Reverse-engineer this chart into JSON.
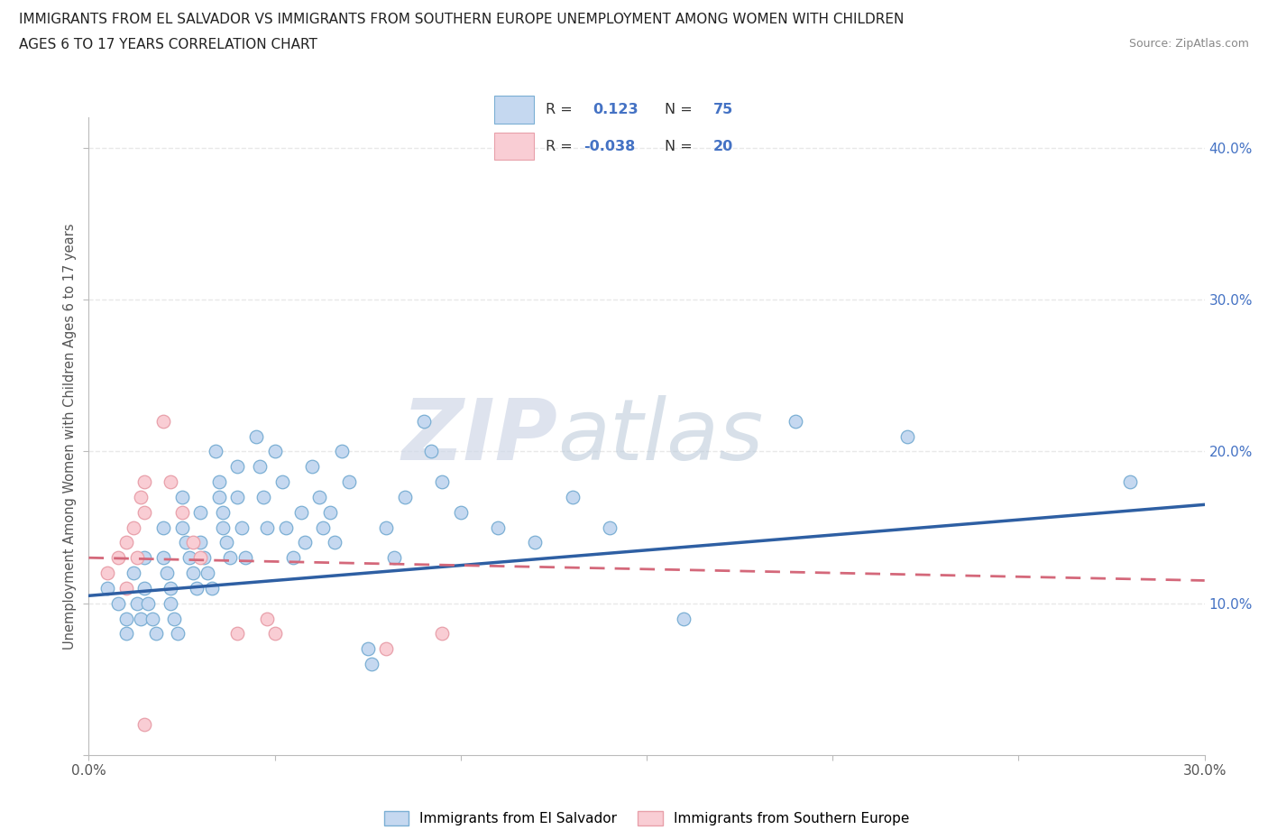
{
  "title_line1": "IMMIGRANTS FROM EL SALVADOR VS IMMIGRANTS FROM SOUTHERN EUROPE UNEMPLOYMENT AMONG WOMEN WITH CHILDREN",
  "title_line2": "AGES 6 TO 17 YEARS CORRELATION CHART",
  "source": "Source: ZipAtlas.com",
  "ylabel": "Unemployment Among Women with Children Ages 6 to 17 years",
  "xlim": [
    0.0,
    0.3
  ],
  "ylim": [
    0.0,
    0.42
  ],
  "xticks": [
    0.0,
    0.05,
    0.1,
    0.15,
    0.2,
    0.25,
    0.3
  ],
  "yticks": [
    0.0,
    0.1,
    0.2,
    0.3,
    0.4
  ],
  "xtick_labels": [
    "0.0%",
    "",
    "",
    "",
    "",
    "",
    "30.0%"
  ],
  "ytick_labels_right": [
    "",
    "10.0%",
    "20.0%",
    "30.0%",
    "40.0%"
  ],
  "xtick_labels_bottom": [
    "0.0%",
    "",
    "",
    "",
    "",
    "",
    "30.0%"
  ],
  "R_blue": 0.123,
  "N_blue": 75,
  "R_pink": -0.038,
  "N_pink": 20,
  "blue_scatter": [
    [
      0.005,
      0.11
    ],
    [
      0.008,
      0.1
    ],
    [
      0.01,
      0.09
    ],
    [
      0.01,
      0.08
    ],
    [
      0.012,
      0.12
    ],
    [
      0.013,
      0.1
    ],
    [
      0.014,
      0.09
    ],
    [
      0.015,
      0.13
    ],
    [
      0.015,
      0.11
    ],
    [
      0.016,
      0.1
    ],
    [
      0.017,
      0.09
    ],
    [
      0.018,
      0.08
    ],
    [
      0.02,
      0.15
    ],
    [
      0.02,
      0.13
    ],
    [
      0.021,
      0.12
    ],
    [
      0.022,
      0.11
    ],
    [
      0.022,
      0.1
    ],
    [
      0.023,
      0.09
    ],
    [
      0.024,
      0.08
    ],
    [
      0.025,
      0.17
    ],
    [
      0.025,
      0.15
    ],
    [
      0.026,
      0.14
    ],
    [
      0.027,
      0.13
    ],
    [
      0.028,
      0.12
    ],
    [
      0.029,
      0.11
    ],
    [
      0.03,
      0.16
    ],
    [
      0.03,
      0.14
    ],
    [
      0.031,
      0.13
    ],
    [
      0.032,
      0.12
    ],
    [
      0.033,
      0.11
    ],
    [
      0.034,
      0.2
    ],
    [
      0.035,
      0.18
    ],
    [
      0.035,
      0.17
    ],
    [
      0.036,
      0.16
    ],
    [
      0.036,
      0.15
    ],
    [
      0.037,
      0.14
    ],
    [
      0.038,
      0.13
    ],
    [
      0.04,
      0.19
    ],
    [
      0.04,
      0.17
    ],
    [
      0.041,
      0.15
    ],
    [
      0.042,
      0.13
    ],
    [
      0.045,
      0.21
    ],
    [
      0.046,
      0.19
    ],
    [
      0.047,
      0.17
    ],
    [
      0.048,
      0.15
    ],
    [
      0.05,
      0.2
    ],
    [
      0.052,
      0.18
    ],
    [
      0.053,
      0.15
    ],
    [
      0.055,
      0.13
    ],
    [
      0.057,
      0.16
    ],
    [
      0.058,
      0.14
    ],
    [
      0.06,
      0.19
    ],
    [
      0.062,
      0.17
    ],
    [
      0.063,
      0.15
    ],
    [
      0.065,
      0.16
    ],
    [
      0.066,
      0.14
    ],
    [
      0.068,
      0.2
    ],
    [
      0.07,
      0.18
    ],
    [
      0.075,
      0.07
    ],
    [
      0.076,
      0.06
    ],
    [
      0.08,
      0.15
    ],
    [
      0.082,
      0.13
    ],
    [
      0.085,
      0.17
    ],
    [
      0.09,
      0.22
    ],
    [
      0.092,
      0.2
    ],
    [
      0.095,
      0.18
    ],
    [
      0.1,
      0.16
    ],
    [
      0.11,
      0.15
    ],
    [
      0.12,
      0.14
    ],
    [
      0.13,
      0.17
    ],
    [
      0.14,
      0.15
    ],
    [
      0.16,
      0.09
    ],
    [
      0.19,
      0.22
    ],
    [
      0.22,
      0.21
    ],
    [
      0.28,
      0.18
    ]
  ],
  "pink_scatter": [
    [
      0.005,
      0.12
    ],
    [
      0.008,
      0.13
    ],
    [
      0.01,
      0.14
    ],
    [
      0.01,
      0.11
    ],
    [
      0.012,
      0.15
    ],
    [
      0.013,
      0.13
    ],
    [
      0.014,
      0.17
    ],
    [
      0.015,
      0.18
    ],
    [
      0.015,
      0.16
    ],
    [
      0.02,
      0.22
    ],
    [
      0.022,
      0.18
    ],
    [
      0.025,
      0.16
    ],
    [
      0.028,
      0.14
    ],
    [
      0.03,
      0.13
    ],
    [
      0.04,
      0.08
    ],
    [
      0.048,
      0.09
    ],
    [
      0.05,
      0.08
    ],
    [
      0.08,
      0.07
    ],
    [
      0.015,
      0.02
    ],
    [
      0.095,
      0.08
    ]
  ],
  "blue_line_x": [
    0.0,
    0.3
  ],
  "blue_line_y": [
    0.105,
    0.165
  ],
  "pink_line_x": [
    0.0,
    0.3
  ],
  "pink_line_y": [
    0.13,
    0.115
  ],
  "blue_color": "#c5d8f0",
  "blue_edge": "#7bafd4",
  "pink_color": "#f9cdd4",
  "pink_edge": "#e8a0aa",
  "blue_line_color": "#2e5fa3",
  "pink_line_color": "#d4687a",
  "watermark_zip": "ZIP",
  "watermark_atlas": "atlas",
  "background_color": "#ffffff",
  "grid_color": "#e8e8e8",
  "label_blue": "Immigrants from El Salvador",
  "label_pink": "Immigrants from Southern Europe"
}
